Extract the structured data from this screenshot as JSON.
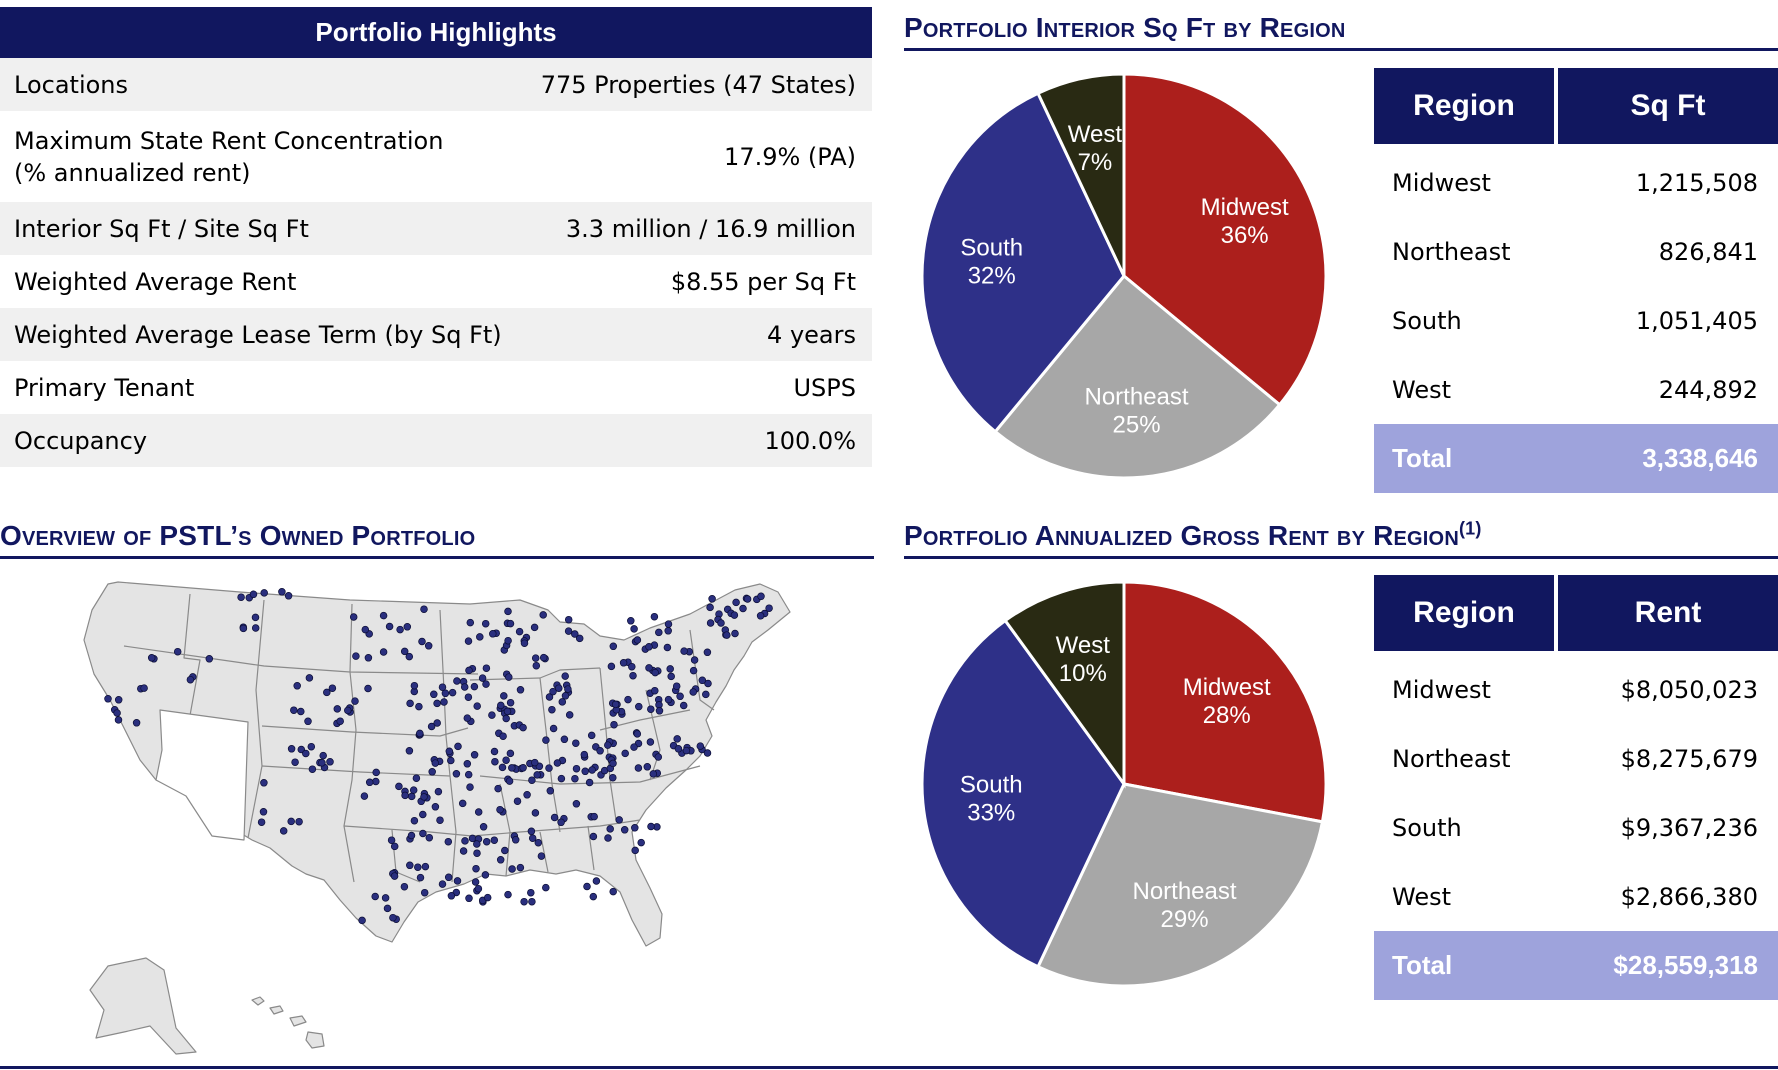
{
  "highlights": {
    "title": "Portfolio Highlights",
    "rows": [
      {
        "label": "Locations",
        "value": "775 Properties (47 States)"
      },
      {
        "label": "Maximum State Rent Concentration (% annualized rent)",
        "value": "17.9% (PA)"
      },
      {
        "label": "Interior Sq Ft / Site Sq Ft",
        "value": "3.3 million / 16.9 million"
      },
      {
        "label": "Weighted Average Rent",
        "value": "$8.55 per Sq Ft"
      },
      {
        "label": "Weighted Average Lease Term (by Sq Ft)",
        "value": "4 years"
      },
      {
        "label": "Primary Tenant",
        "value": "USPS"
      },
      {
        "label": "Occupancy",
        "value": "100.0%"
      }
    ]
  },
  "overview": {
    "title": "Overview of PSTL’s Owned Portfolio"
  },
  "sqft_section": {
    "title": "Portfolio Interior Sq Ft by Region",
    "table": {
      "headers": [
        "Region",
        "Sq Ft"
      ],
      "rows": [
        {
          "region": "Midwest",
          "value": "1,215,508"
        },
        {
          "region": "Northeast",
          "value": "826,841"
        },
        {
          "region": "South",
          "value": "1,051,405"
        },
        {
          "region": "West",
          "value": "244,892"
        }
      ],
      "total_label": "Total",
      "total_value": "3,338,646"
    }
  },
  "rent_section": {
    "title": "Portfolio Annualized Gross Rent by Region",
    "footnote": "(1)",
    "table": {
      "headers": [
        "Region",
        "Rent"
      ],
      "rows": [
        {
          "region": "Midwest",
          "value": "$8,050,023"
        },
        {
          "region": "Northeast",
          "value": "$8,275,679"
        },
        {
          "region": "South",
          "value": "$9,367,236"
        },
        {
          "region": "West",
          "value": "$2,866,380"
        }
      ],
      "total_label": "Total",
      "total_value": "$28,559,318"
    }
  },
  "colors": {
    "navy": "#11175f",
    "midwest": "#ac1f1c",
    "northeast": "#a7a7a7",
    "south": "#2e3088",
    "west": "#292a13",
    "total_row": "#9ea3dc",
    "map_fill": "#e4e4e4",
    "map_dot": "#2a2f7e"
  },
  "chart_data": [
    {
      "type": "pie",
      "title": "Portfolio Interior Sq Ft by Region",
      "labels": [
        "Midwest",
        "Northeast",
        "South",
        "West"
      ],
      "values": [
        36,
        25,
        32,
        7
      ],
      "value_labels": [
        "36%",
        "25%",
        "32%",
        "7%"
      ]
    },
    {
      "type": "pie",
      "title": "Portfolio Annualized Gross Rent by Region",
      "labels": [
        "Midwest",
        "Northeast",
        "South",
        "West"
      ],
      "values": [
        28,
        29,
        33,
        10
      ],
      "value_labels": [
        "28%",
        "29%",
        "33%",
        "10%"
      ]
    }
  ]
}
